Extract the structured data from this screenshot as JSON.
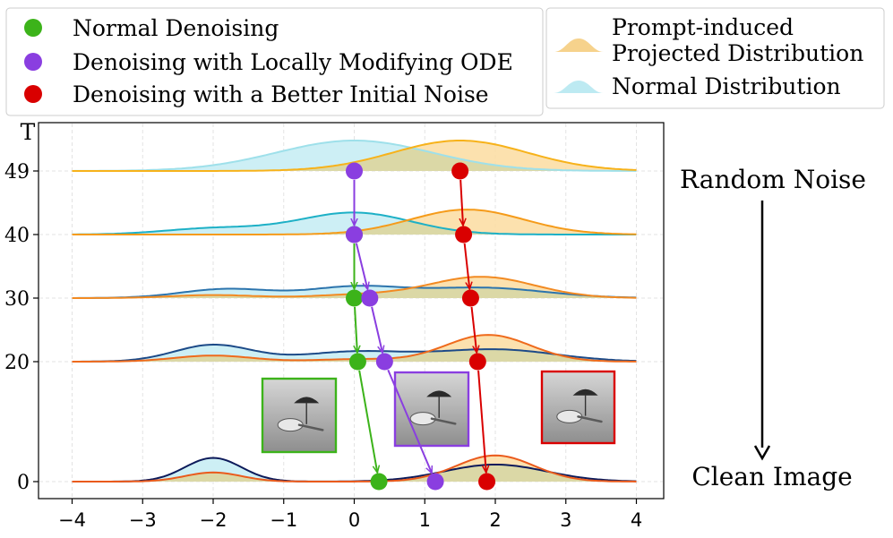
{
  "chart_data": {
    "type": "ridgeline",
    "y_axis_title": "T",
    "x_ticks": [
      -4,
      -3,
      -2,
      -1,
      0,
      1,
      2,
      3,
      4
    ],
    "x_tick_labels": [
      "−4",
      "−3",
      "−2",
      "−1",
      "0",
      "1",
      "2",
      "3",
      "4"
    ],
    "xlim": [
      -4.4,
      4.4
    ],
    "rows": [
      {
        "t": "49",
        "baseline": 49,
        "normal": [
          {
            "mu": 0,
            "sigma": 1.1,
            "amp": 1.0
          }
        ],
        "prompt": [
          {
            "mu": 1.5,
            "sigma": 0.95,
            "amp": 1.0
          }
        ]
      },
      {
        "t": "40",
        "baseline": 40,
        "normal": [
          {
            "mu": 0,
            "sigma": 0.8,
            "amp": 0.72
          },
          {
            "mu": -2,
            "sigma": 0.7,
            "amp": 0.2
          }
        ],
        "prompt": [
          {
            "mu": 1.6,
            "sigma": 0.8,
            "amp": 0.82
          }
        ]
      },
      {
        "t": "30",
        "baseline": 30,
        "normal": [
          {
            "mu": -1.8,
            "sigma": 0.65,
            "amp": 0.3
          },
          {
            "mu": 0,
            "sigma": 0.65,
            "amp": 0.35
          },
          {
            "mu": 1.8,
            "sigma": 0.9,
            "amp": 0.34
          }
        ],
        "prompt": [
          {
            "mu": -2,
            "sigma": 0.6,
            "amp": 0.1
          },
          {
            "mu": 0,
            "sigma": 0.6,
            "amp": 0.1
          },
          {
            "mu": 1.8,
            "sigma": 0.75,
            "amp": 0.7
          }
        ]
      },
      {
        "t": "20",
        "baseline": 20,
        "normal": [
          {
            "mu": -2,
            "sigma": 0.55,
            "amp": 0.55
          },
          {
            "mu": 0,
            "sigma": 0.75,
            "amp": 0.32
          },
          {
            "mu": 2,
            "sigma": 0.85,
            "amp": 0.4
          }
        ],
        "prompt": [
          {
            "mu": -2,
            "sigma": 0.55,
            "amp": 0.2
          },
          {
            "mu": 0,
            "sigma": 0.55,
            "amp": 0.08
          },
          {
            "mu": 1.9,
            "sigma": 0.6,
            "amp": 0.88
          }
        ]
      },
      {
        "t": "0",
        "baseline": 0,
        "normal": [
          {
            "mu": -2,
            "sigma": 0.4,
            "amp": 0.78
          },
          {
            "mu": 2,
            "sigma": 0.72,
            "amp": 0.56
          }
        ],
        "prompt": [
          {
            "mu": -2,
            "sigma": 0.4,
            "amp": 0.3
          },
          {
            "mu": 2,
            "sigma": 0.55,
            "amp": 0.86
          }
        ]
      }
    ],
    "trajectories": [
      {
        "name": "Normal Denoising",
        "color": "#3cb31a",
        "points": [
          [
            0,
            40
          ],
          [
            0.0,
            30
          ],
          [
            0.05,
            20
          ],
          [
            0.35,
            0
          ]
        ]
      },
      {
        "name": "Denoising with Locally Modifying ODE",
        "color": "#8a3ee0",
        "points": [
          [
            0,
            49
          ],
          [
            0,
            40
          ],
          [
            0.22,
            30
          ],
          [
            0.43,
            20
          ],
          [
            1.15,
            0
          ]
        ]
      },
      {
        "name": "Denoising with a Better Initial Noise",
        "color": "#d90000",
        "points": [
          [
            1.5,
            49
          ],
          [
            1.55,
            40
          ],
          [
            1.65,
            30
          ],
          [
            1.75,
            20
          ],
          [
            1.88,
            0
          ]
        ]
      }
    ]
  },
  "legend_left": [
    {
      "label": "Normal Denoising",
      "color": "#3cb31a"
    },
    {
      "label": "Denoising with Locally Modifying ODE",
      "color": "#8a3ee0"
    },
    {
      "label": "Denoising with a Better Initial Noise",
      "color": "#d90000"
    }
  ],
  "legend_right": [
    {
      "label_line1": "Prompt-induced",
      "label_line2": "Projected Distribution",
      "color": "#f6d28c"
    },
    {
      "label_line1": "Normal Distribution",
      "label_line2": "",
      "color": "#bdeaf2"
    }
  ],
  "annotations": {
    "random_noise": "Random Noise",
    "clean_image": "Clean Image"
  },
  "colors": {
    "normal_fill": "#cdeff5",
    "prompt_fill": "#fbdca0",
    "overlap_fill": "#dbd8a6",
    "normal_line_shades": [
      "#9ee0ea",
      "#1db0c6",
      "#2c74ad",
      "#1c4a88",
      "#0c1a5a"
    ],
    "prompt_line_shades": [
      "#f7b21a",
      "#f59b1a",
      "#f28a22",
      "#ef6a1c",
      "#ea5a1c"
    ]
  }
}
